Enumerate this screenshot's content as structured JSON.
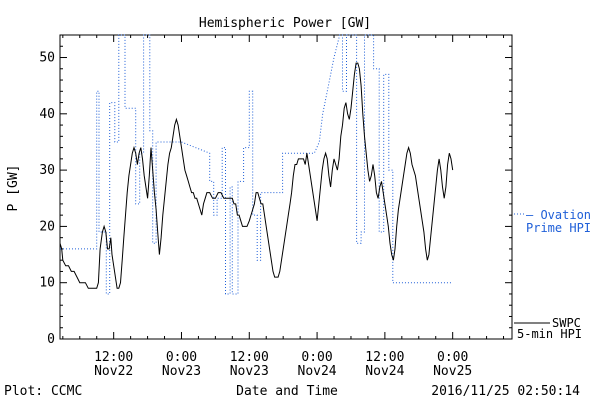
{
  "chart_data": {
    "type": "line",
    "title": "Hemispheric Power [GW]",
    "ylabel": "P [GW]",
    "xlabel": "Date and Time",
    "ylim": [
      0,
      54
    ],
    "xlim": [
      2.5,
      82.5
    ],
    "yticks": [
      0,
      10,
      20,
      30,
      40,
      50
    ],
    "xticks": [
      {
        "x": 12,
        "time": "12:00",
        "date": "Nov22"
      },
      {
        "x": 24,
        "time": "0:00",
        "date": "Nov23"
      },
      {
        "x": 36,
        "time": "12:00",
        "date": "Nov23"
      },
      {
        "x": 48,
        "time": "0:00",
        "date": "Nov24"
      },
      {
        "x": 60,
        "time": "12:00",
        "date": "Nov24"
      },
      {
        "x": 72,
        "time": "0:00",
        "date": "Nov25"
      }
    ],
    "x_unit_note": "x in hours after 2016/11/22 0:00",
    "series": [
      {
        "name": "SWPC 5-min HPI",
        "color": "#000000",
        "style": "solid",
        "points": [
          [
            2.5,
            17
          ],
          [
            2.8,
            16
          ],
          [
            3.0,
            14
          ],
          [
            3.5,
            13
          ],
          [
            4.0,
            13
          ],
          [
            4.5,
            12
          ],
          [
            5.0,
            12
          ],
          [
            5.5,
            11
          ],
          [
            6.0,
            10
          ],
          [
            6.5,
            10
          ],
          [
            7.0,
            10
          ],
          [
            7.5,
            9
          ],
          [
            8.0,
            9
          ],
          [
            8.5,
            9
          ],
          [
            9.0,
            9
          ],
          [
            9.3,
            10
          ],
          [
            9.6,
            16
          ],
          [
            10.0,
            19
          ],
          [
            10.3,
            20
          ],
          [
            10.6,
            19
          ],
          [
            10.9,
            16
          ],
          [
            11.2,
            16
          ],
          [
            11.5,
            18
          ],
          [
            11.7,
            15
          ],
          [
            12.0,
            13
          ],
          [
            12.3,
            11
          ],
          [
            12.6,
            9
          ],
          [
            12.9,
            9
          ],
          [
            13.2,
            10
          ],
          [
            13.5,
            14
          ],
          [
            13.8,
            18
          ],
          [
            14.1,
            22
          ],
          [
            14.4,
            26
          ],
          [
            14.7,
            29
          ],
          [
            15.0,
            31
          ],
          [
            15.3,
            33
          ],
          [
            15.6,
            34
          ],
          [
            15.9,
            33
          ],
          [
            16.2,
            31
          ],
          [
            16.5,
            33
          ],
          [
            16.8,
            34
          ],
          [
            17.1,
            32
          ],
          [
            17.4,
            29
          ],
          [
            17.7,
            27
          ],
          [
            18.0,
            25
          ],
          [
            18.3,
            29
          ],
          [
            18.6,
            34
          ],
          [
            18.9,
            30
          ],
          [
            19.2,
            26
          ],
          [
            19.5,
            23
          ],
          [
            19.8,
            19
          ],
          [
            20.1,
            15
          ],
          [
            20.4,
            18
          ],
          [
            20.7,
            22
          ],
          [
            21.0,
            25
          ],
          [
            21.3,
            28
          ],
          [
            21.6,
            31
          ],
          [
            21.9,
            33
          ],
          [
            22.2,
            34
          ],
          [
            22.5,
            36
          ],
          [
            22.8,
            38
          ],
          [
            23.1,
            39
          ],
          [
            23.4,
            38
          ],
          [
            23.7,
            36
          ],
          [
            24.0,
            34
          ],
          [
            24.3,
            32
          ],
          [
            24.6,
            30
          ],
          [
            24.9,
            29
          ],
          [
            25.2,
            28
          ],
          [
            25.5,
            27
          ],
          [
            25.8,
            26
          ],
          [
            26.1,
            26
          ],
          [
            26.4,
            25
          ],
          [
            26.7,
            25
          ],
          [
            27.0,
            24
          ],
          [
            27.3,
            23
          ],
          [
            27.6,
            22
          ],
          [
            27.9,
            24
          ],
          [
            28.2,
            25
          ],
          [
            28.5,
            26
          ],
          [
            29.0,
            26
          ],
          [
            29.5,
            25
          ],
          [
            30.0,
            25
          ],
          [
            30.5,
            26
          ],
          [
            31.0,
            26
          ],
          [
            31.5,
            25
          ],
          [
            32.0,
            25
          ],
          [
            32.5,
            25
          ],
          [
            33.0,
            25
          ],
          [
            33.3,
            24
          ],
          [
            33.6,
            24
          ],
          [
            33.9,
            22
          ],
          [
            34.2,
            22
          ],
          [
            34.5,
            21
          ],
          [
            34.8,
            20
          ],
          [
            35.2,
            20
          ],
          [
            35.6,
            20
          ],
          [
            36.0,
            21
          ],
          [
            36.3,
            22
          ],
          [
            36.6,
            23
          ],
          [
            36.9,
            24
          ],
          [
            37.2,
            26
          ],
          [
            37.5,
            26
          ],
          [
            37.8,
            25
          ],
          [
            38.1,
            24
          ],
          [
            38.4,
            24
          ],
          [
            38.7,
            22
          ],
          [
            39.0,
            20
          ],
          [
            39.3,
            18
          ],
          [
            39.6,
            16
          ],
          [
            39.9,
            14
          ],
          [
            40.2,
            12
          ],
          [
            40.5,
            11
          ],
          [
            40.8,
            11
          ],
          [
            41.1,
            11
          ],
          [
            41.4,
            12
          ],
          [
            41.7,
            14
          ],
          [
            42.0,
            16
          ],
          [
            42.3,
            18
          ],
          [
            42.6,
            20
          ],
          [
            42.9,
            22
          ],
          [
            43.2,
            24
          ],
          [
            43.5,
            26
          ],
          [
            43.8,
            29
          ],
          [
            44.1,
            31
          ],
          [
            44.4,
            31
          ],
          [
            44.7,
            32
          ],
          [
            45.0,
            32
          ],
          [
            45.3,
            32
          ],
          [
            45.6,
            32
          ],
          [
            45.9,
            31
          ],
          [
            46.2,
            33
          ],
          [
            46.5,
            31
          ],
          [
            46.8,
            29
          ],
          [
            47.1,
            27
          ],
          [
            47.4,
            25
          ],
          [
            47.7,
            23
          ],
          [
            48.0,
            21
          ],
          [
            48.3,
            24
          ],
          [
            48.6,
            27
          ],
          [
            48.9,
            30
          ],
          [
            49.2,
            32
          ],
          [
            49.5,
            33
          ],
          [
            49.8,
            32
          ],
          [
            50.1,
            29
          ],
          [
            50.4,
            27
          ],
          [
            50.7,
            30
          ],
          [
            51.0,
            32
          ],
          [
            51.3,
            31
          ],
          [
            51.6,
            30
          ],
          [
            51.9,
            32
          ],
          [
            52.2,
            36
          ],
          [
            52.5,
            38
          ],
          [
            52.8,
            41
          ],
          [
            53.1,
            42
          ],
          [
            53.4,
            40
          ],
          [
            53.7,
            39
          ],
          [
            54.0,
            41
          ],
          [
            54.3,
            44
          ],
          [
            54.6,
            47
          ],
          [
            54.9,
            49
          ],
          [
            55.2,
            49
          ],
          [
            55.5,
            48
          ],
          [
            55.8,
            45
          ],
          [
            56.1,
            40
          ],
          [
            56.4,
            36
          ],
          [
            56.7,
            33
          ],
          [
            57.0,
            30
          ],
          [
            57.3,
            28
          ],
          [
            57.6,
            29
          ],
          [
            57.9,
            31
          ],
          [
            58.2,
            29
          ],
          [
            58.5,
            26
          ],
          [
            58.8,
            25
          ],
          [
            59.1,
            27
          ],
          [
            59.4,
            28
          ],
          [
            59.7,
            26
          ],
          [
            60.0,
            24
          ],
          [
            60.3,
            22
          ],
          [
            60.6,
            20
          ],
          [
            60.9,
            17
          ],
          [
            61.2,
            15
          ],
          [
            61.5,
            14
          ],
          [
            61.8,
            16
          ],
          [
            62.1,
            20
          ],
          [
            62.4,
            23
          ],
          [
            62.7,
            25
          ],
          [
            63.0,
            27
          ],
          [
            63.3,
            29
          ],
          [
            63.6,
            31
          ],
          [
            63.9,
            33
          ],
          [
            64.2,
            34
          ],
          [
            64.5,
            33
          ],
          [
            64.8,
            31
          ],
          [
            65.1,
            30
          ],
          [
            65.4,
            29
          ],
          [
            65.7,
            27
          ],
          [
            66.0,
            25
          ],
          [
            66.3,
            23
          ],
          [
            66.6,
            21
          ],
          [
            66.9,
            19
          ],
          [
            67.2,
            16
          ],
          [
            67.5,
            14
          ],
          [
            67.8,
            15
          ],
          [
            68.1,
            18
          ],
          [
            68.4,
            21
          ],
          [
            68.7,
            24
          ],
          [
            69.0,
            27
          ],
          [
            69.3,
            30
          ],
          [
            69.6,
            32
          ],
          [
            69.9,
            30
          ],
          [
            70.2,
            27
          ],
          [
            70.5,
            25
          ],
          [
            70.8,
            27
          ],
          [
            71.1,
            31
          ],
          [
            71.4,
            33
          ],
          [
            71.7,
            32
          ],
          [
            72.0,
            30
          ]
        ]
      },
      {
        "name": "Ovation Prime HPI",
        "color": "#1f5fd8",
        "style": "dotted",
        "points": [
          [
            2.5,
            16
          ],
          [
            4.0,
            16
          ],
          [
            5.5,
            16
          ],
          [
            7.5,
            16
          ],
          [
            9.0,
            16
          ],
          [
            9.0,
            44
          ],
          [
            9.4,
            44
          ],
          [
            9.4,
            19
          ],
          [
            10.7,
            19
          ],
          [
            10.7,
            8
          ],
          [
            11.3,
            8
          ],
          [
            11.3,
            42
          ],
          [
            12.2,
            42
          ],
          [
            12.2,
            35
          ],
          [
            12.9,
            35
          ],
          [
            12.9,
            54
          ],
          [
            14.0,
            54
          ],
          [
            14.0,
            41
          ],
          [
            15.9,
            41
          ],
          [
            15.9,
            24
          ],
          [
            16.6,
            24
          ],
          [
            16.6,
            33
          ],
          [
            17.3,
            33
          ],
          [
            17.3,
            54
          ],
          [
            18.4,
            54
          ],
          [
            18.4,
            37
          ],
          [
            18.9,
            37
          ],
          [
            18.9,
            17
          ],
          [
            19.5,
            17
          ],
          [
            19.5,
            35
          ],
          [
            23.8,
            35
          ],
          [
            24.0,
            35
          ],
          [
            29.0,
            33
          ],
          [
            29.0,
            28
          ],
          [
            29.7,
            28
          ],
          [
            29.7,
            22
          ],
          [
            30.3,
            22
          ],
          [
            30.3,
            25
          ],
          [
            31.2,
            25
          ],
          [
            31.2,
            34
          ],
          [
            31.8,
            34
          ],
          [
            31.8,
            8
          ],
          [
            32.6,
            8
          ],
          [
            32.6,
            27
          ],
          [
            33.0,
            27
          ],
          [
            33.0,
            8
          ],
          [
            34.0,
            8
          ],
          [
            34.0,
            28
          ],
          [
            35.0,
            28
          ],
          [
            35.0,
            34
          ],
          [
            36.0,
            34
          ],
          [
            36.0,
            44
          ],
          [
            36.6,
            44
          ],
          [
            36.6,
            22
          ],
          [
            37.4,
            22
          ],
          [
            37.4,
            14
          ],
          [
            38.0,
            14
          ],
          [
            38.0,
            26
          ],
          [
            41.9,
            26
          ],
          [
            41.9,
            33
          ],
          [
            47.5,
            33
          ],
          [
            48.4,
            35
          ],
          [
            49.0,
            40
          ],
          [
            50.0,
            45
          ],
          [
            51.0,
            50
          ],
          [
            52.0,
            54
          ],
          [
            52.5,
            54
          ],
          [
            52.5,
            44
          ],
          [
            53.2,
            44
          ],
          [
            53.2,
            54
          ],
          [
            55.0,
            54
          ],
          [
            55.0,
            17
          ],
          [
            55.8,
            17
          ],
          [
            55.8,
            19
          ],
          [
            56.4,
            19
          ],
          [
            56.4,
            54
          ],
          [
            58.0,
            54
          ],
          [
            58.0,
            48
          ],
          [
            59.0,
            48
          ],
          [
            59.0,
            19
          ],
          [
            59.8,
            19
          ],
          [
            59.8,
            47
          ],
          [
            60.7,
            47
          ],
          [
            60.7,
            30
          ],
          [
            61.4,
            30
          ],
          [
            61.4,
            10
          ],
          [
            72.0,
            10
          ]
        ]
      }
    ]
  },
  "annotations": {
    "legend_swpc_line1": "SWPC",
    "legend_swpc_line2": "5-min HPI",
    "legend_ovation_line1": "— Ovation",
    "legend_ovation_line2": "Prime HPI",
    "plot_credit": "Plot: CCMC",
    "timestamp": "2016/11/25 02:50:14"
  }
}
